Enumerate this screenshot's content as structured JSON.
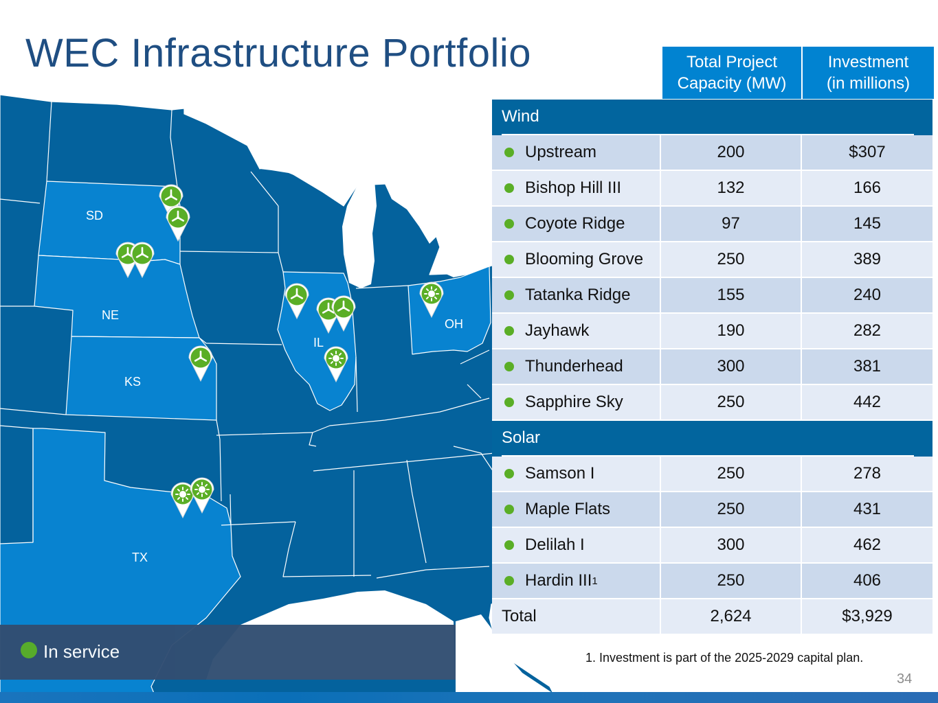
{
  "title": "WEC Infrastructure Portfolio",
  "table": {
    "col_capacity": "Total Project Capacity (MW)",
    "col_capacity_l1": "Total Project",
    "col_capacity_l2": "Capacity (MW)",
    "col_investment_l1": "Investment",
    "col_investment_l2": "(in millions)",
    "wind_label": "Wind",
    "wind": [
      {
        "name": "Upstream",
        "mw": "200",
        "inv": "$307"
      },
      {
        "name": "Bishop Hill III",
        "mw": "132",
        "inv": "166"
      },
      {
        "name": "Coyote Ridge",
        "mw": "97",
        "inv": "145"
      },
      {
        "name": "Blooming Grove",
        "mw": "250",
        "inv": "389"
      },
      {
        "name": "Tatanka Ridge",
        "mw": "155",
        "inv": "240"
      },
      {
        "name": "Jayhawk",
        "mw": "190",
        "inv": "282"
      },
      {
        "name": "Thunderhead",
        "mw": "300",
        "inv": "381"
      },
      {
        "name": "Sapphire Sky",
        "mw": "250",
        "inv": "442"
      }
    ],
    "solar_label": "Solar",
    "solar": [
      {
        "name": "Samson I",
        "mw": "250",
        "inv": "278"
      },
      {
        "name": "Maple Flats",
        "mw": "250",
        "inv": "431"
      },
      {
        "name": "Delilah I",
        "mw": "300",
        "inv": "462"
      },
      {
        "name": "Hardin III",
        "sup": "1",
        "mw": "250",
        "inv": "406"
      }
    ],
    "total": {
      "name": "Total",
      "mw": "2,624",
      "inv": "$3,929"
    }
  },
  "map": {
    "state_labels": [
      "SD",
      "NE",
      "KS",
      "IL",
      "OH",
      "TX"
    ],
    "colors": {
      "highlight": "#0883d0",
      "base": "#04629d",
      "pin": "#5aae26"
    }
  },
  "legend": {
    "in_service": "In service"
  },
  "footnote": "1. Investment is part of the 2025-2029 capital plan.",
  "page_number": "34"
}
